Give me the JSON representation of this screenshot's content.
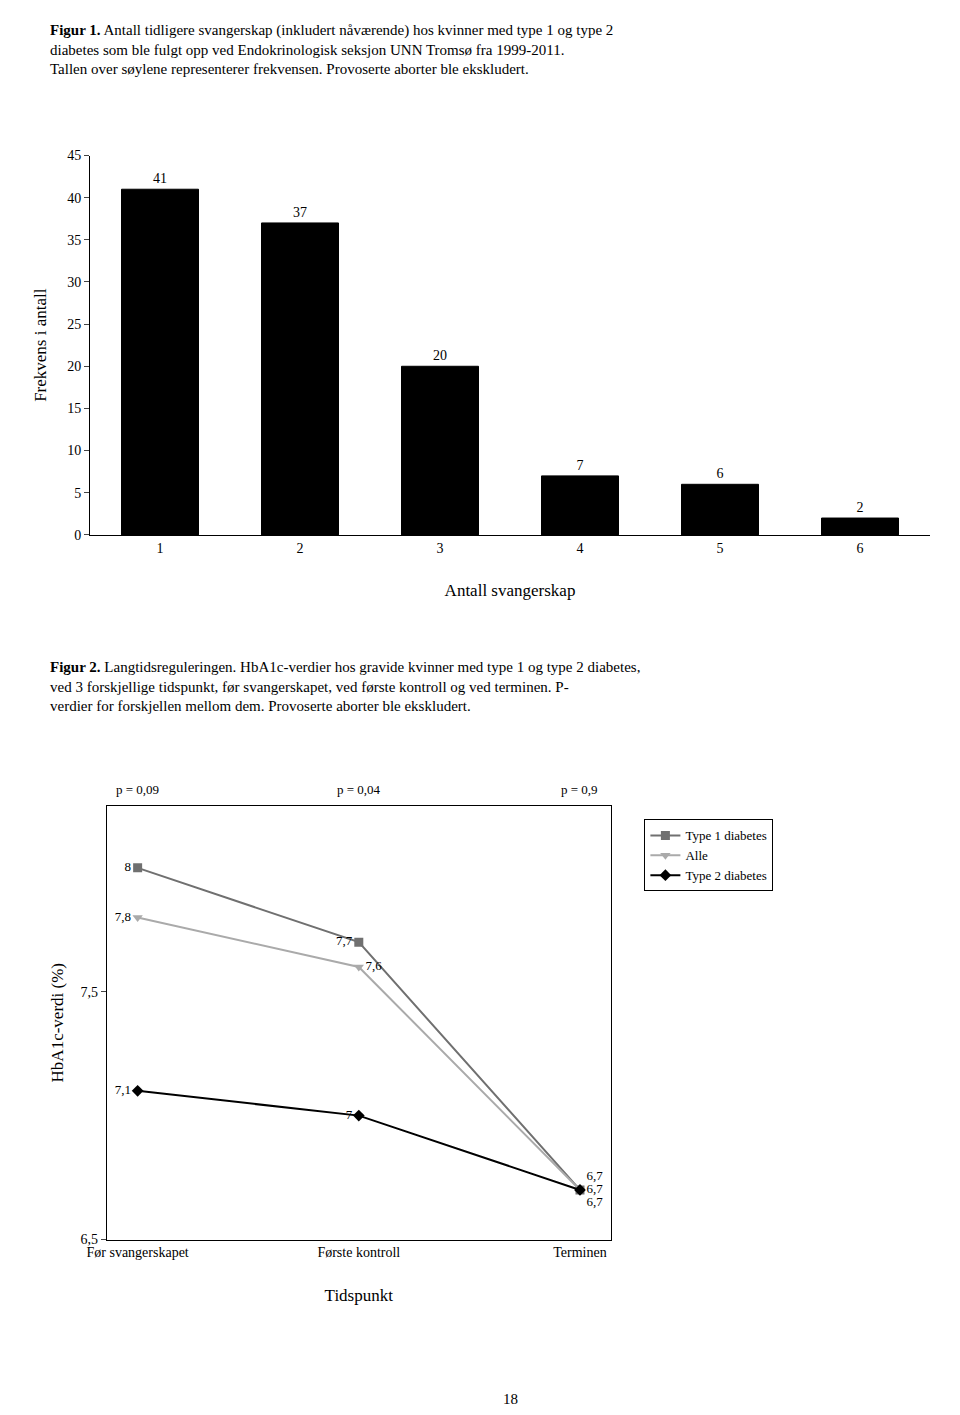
{
  "chart_data": [
    {
      "type": "bar",
      "title": "Figur 1.",
      "subtitle": "Antall tidligere svangerskap (inkludert nåværende) hos kvinner med type 1 og type 2\ndiabetes som ble fulgt opp ved Endokrinologisk seksjon UNN Tromsø fra 1999-2011.\nTallen over søylene representerer frekvensen. Provoserte aborter ble ekskludert.",
      "x_label": "Antall svangerskap",
      "y_label": "Frekvens i antall",
      "categories": [
        1,
        2,
        3,
        4,
        5,
        6
      ],
      "values": [
        41,
        37,
        20,
        7,
        6,
        2
      ],
      "color": "#000000",
      "ylim": [
        0,
        45
      ],
      "yticks": [
        0,
        5,
        10,
        15,
        20,
        25,
        30,
        35,
        40,
        45
      ],
      "data_labels": true,
      "grid": false
    },
    {
      "type": "line",
      "title": "Figur 2.",
      "subtitle": "Langtidsreguleringen. HbA1c-verdier hos gravide kvinner med type 1 og type 2 diabetes,\nved 3 forskjellige tidspunkt, før svangerskapet, ved første kontroll og ved terminen. P-\nverdier for forskjellen mellom dem. Provoserte aborter ble ekskludert.",
      "x_label": "Tidspunkt",
      "y_label": "HbA1c-verdi (%)",
      "categories": [
        "Før svangerskapet",
        "Første kontroll",
        "Terminen"
      ],
      "series": [
        {
          "name": "Type 1 diabetes",
          "color": "#707070",
          "marker": "square",
          "values": [
            8.0,
            7.7,
            6.7
          ],
          "value_labels": [
            "8",
            "7,7",
            "6,7"
          ]
        },
        {
          "name": "Alle",
          "color": "#aaaaaa",
          "marker": "triangle-down",
          "values": [
            7.8,
            7.6,
            6.7
          ],
          "value_labels": [
            "7,8",
            "7,6",
            "6,7"
          ]
        },
        {
          "name": "Type 2 diabetes",
          "color": "#000000",
          "marker": "diamond",
          "values": [
            7.1,
            7.0,
            6.7
          ],
          "value_labels": [
            "7,1",
            "7",
            "6,7"
          ]
        }
      ],
      "annotations": [
        "p = 0,09",
        "p = 0,04",
        "p = 0,9"
      ],
      "ylim": [
        6.5,
        8.25
      ],
      "yticks": [
        {
          "value": 6.5,
          "label": "6,5"
        },
        {
          "value": 7.5,
          "label": "7,5"
        }
      ],
      "data_labels": true,
      "legend": "right",
      "grid": false
    }
  ],
  "page_number": "18"
}
